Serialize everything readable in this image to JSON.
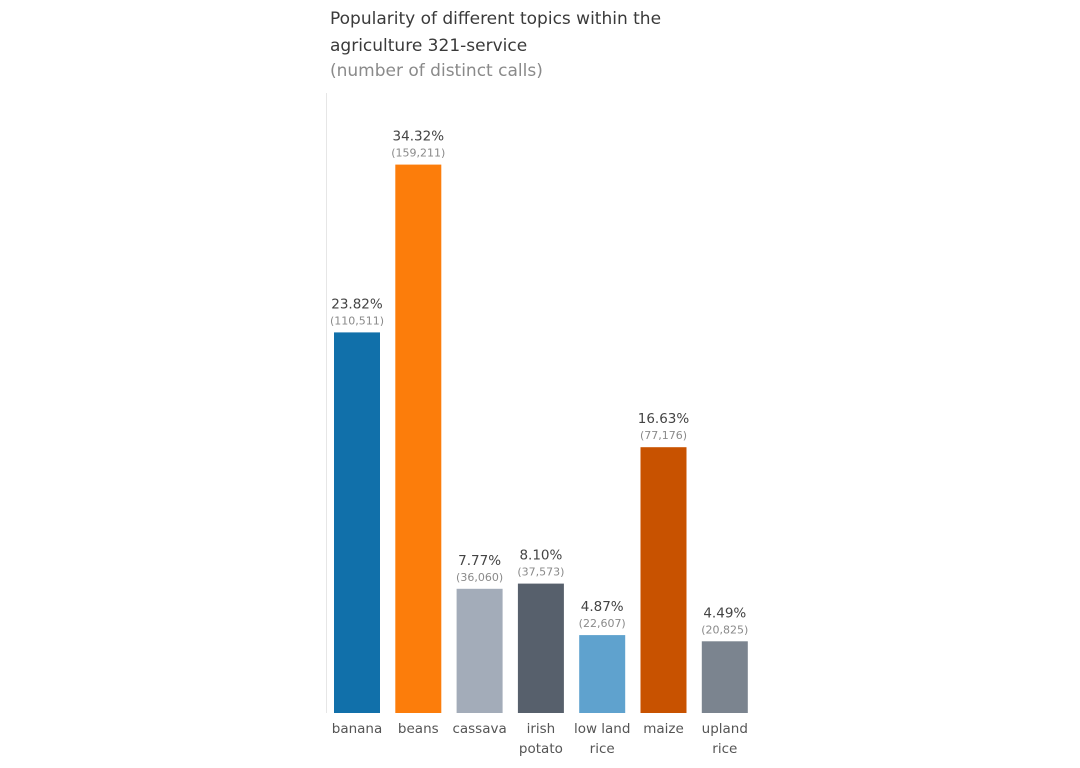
{
  "chart_data": {
    "type": "bar",
    "title": "Popularity of different topics within the agriculture 321-service",
    "title_lines": [
      "Popularity of different topics within the",
      "agriculture 321-service"
    ],
    "subtitle": "(number of distinct calls)",
    "xlabel": "",
    "ylabel": "",
    "grid": false,
    "ylim": [
      0,
      180000
    ],
    "categories": [
      [
        "banana"
      ],
      [
        "beans"
      ],
      [
        "cassava"
      ],
      [
        "irish",
        "potato"
      ],
      [
        "low land",
        "rice"
      ],
      [
        "maize"
      ],
      [
        "upland",
        "rice"
      ]
    ],
    "values": [
      110511,
      159211,
      36060,
      37573,
      22607,
      77176,
      20825
    ],
    "value_labels": [
      "(110,511)",
      "(159,211)",
      "(36,060)",
      "(37,573)",
      "(22,607)",
      "(77,176)",
      "(20,825)"
    ],
    "percent_labels": [
      "23.82%",
      "34.32%",
      "7.77%",
      "8.10%",
      "4.87%",
      "16.63%",
      "4.49%"
    ],
    "colors": [
      "#1170aa",
      "#fc7d0b",
      "#a3acb9",
      "#57606c",
      "#5fa2ce",
      "#c85200",
      "#7b848f"
    ]
  }
}
